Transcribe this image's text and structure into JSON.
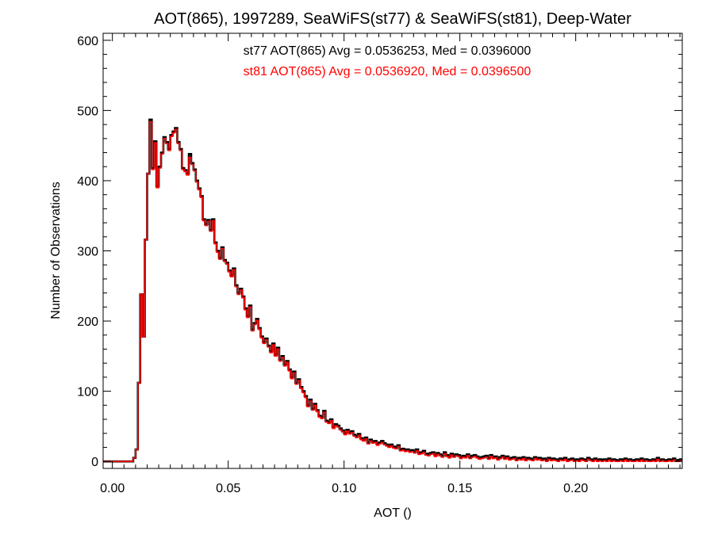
{
  "chart_data": {
    "type": "histogram",
    "title": "AOT(865), 1997289, SeaWiFS(st77) & SeaWiFS(st81), Deep-Water",
    "xlabel": "AOT ()",
    "ylabel": "Number of Observations",
    "xlim": [
      -0.004,
      0.246
    ],
    "ylim": [
      -10,
      610
    ],
    "x_ticks": [
      0.0,
      0.05,
      0.1,
      0.15,
      0.2
    ],
    "x_tick_labels": [
      "0.00",
      "0.05",
      "0.10",
      "0.15",
      "0.20"
    ],
    "y_ticks": [
      0,
      100,
      200,
      300,
      400,
      500,
      600
    ],
    "y_tick_labels": [
      "0",
      "100",
      "200",
      "300",
      "400",
      "500",
      "600"
    ],
    "bin_start": -0.004,
    "bin_width": 0.001,
    "legend_placement": "top-center",
    "series": [
      {
        "name": "st77",
        "color": "#000000",
        "stats_label": "st77 AOT(865) Avg = 0.0536253, Med = 0.0396000",
        "values": [
          0,
          0,
          0,
          0,
          0,
          0,
          0,
          0,
          0,
          0,
          0,
          0,
          0,
          5,
          17,
          112,
          238,
          178,
          316,
          410,
          487,
          418,
          456,
          392,
          420,
          440,
          462,
          455,
          445,
          465,
          470,
          475,
          455,
          445,
          418,
          415,
          410,
          438,
          425,
          416,
          400,
          389,
          378,
          345,
          338,
          344,
          330,
          345,
          312,
          300,
          290,
          305,
          287,
          283,
          272,
          265,
          275,
          251,
          240,
          246,
          235,
          218,
          207,
          222,
          188,
          197,
          203,
          190,
          178,
          170,
          175,
          165,
          157,
          168,
          152,
          162,
          145,
          150,
          138,
          143,
          131,
          120,
          128,
          112,
          117,
          106,
          100,
          93,
          80,
          88,
          75,
          82,
          73,
          65,
          63,
          72,
          58,
          56,
          60,
          49,
          53,
          51,
          47,
          44,
          40,
          45,
          41,
          43,
          38,
          36,
          39,
          33,
          31,
          34,
          27,
          31,
          28,
          29,
          25,
          27,
          29,
          26,
          24,
          22,
          24,
          21,
          20,
          23,
          17,
          18,
          16,
          17,
          15,
          16,
          14,
          17,
          12,
          13,
          15,
          11,
          10,
          12,
          13,
          9,
          12,
          10,
          8,
          13,
          9,
          7,
          11,
          8,
          10,
          9,
          6,
          8,
          7,
          10,
          6,
          8,
          9,
          7,
          5,
          6,
          7,
          8,
          5,
          9,
          6,
          7,
          4,
          6,
          8,
          5,
          7,
          4,
          5,
          6,
          3,
          5,
          4,
          6,
          3,
          5,
          4,
          3,
          6,
          4,
          5,
          3,
          4,
          2,
          5,
          3,
          4,
          3,
          2,
          4,
          3,
          5,
          2,
          3,
          4,
          2,
          3,
          2,
          4,
          3,
          2,
          5,
          3,
          2,
          4,
          2,
          3,
          2,
          3,
          2,
          4,
          2,
          3,
          2,
          1,
          3,
          2,
          4,
          2,
          3,
          1,
          2,
          3,
          2,
          4,
          1,
          3,
          2,
          1,
          3,
          2,
          5,
          2,
          3,
          1,
          2,
          3,
          2,
          4,
          1,
          2,
          3,
          2,
          1,
          3,
          2,
          1,
          2,
          3
        ]
      },
      {
        "name": "st81",
        "color": "#ff0000",
        "stats_label": "st81 AOT(865) Avg = 0.0536920, Med = 0.0396500",
        "values": [
          0,
          0,
          0,
          0,
          0,
          0,
          0,
          0,
          0,
          0,
          0,
          0,
          0,
          5,
          17,
          112,
          238,
          178,
          316,
          410,
          484,
          416,
          454,
          390,
          418,
          438,
          460,
          453,
          443,
          463,
          468,
          473,
          453,
          443,
          416,
          413,
          408,
          433,
          423,
          414,
          398,
          387,
          376,
          343,
          336,
          342,
          328,
          343,
          310,
          298,
          288,
          303,
          285,
          281,
          270,
          263,
          273,
          249,
          238,
          244,
          233,
          216,
          205,
          220,
          186,
          195,
          201,
          188,
          176,
          168,
          173,
          163,
          155,
          166,
          150,
          160,
          143,
          148,
          136,
          141,
          129,
          118,
          126,
          110,
          115,
          104,
          98,
          91,
          78,
          86,
          73,
          80,
          71,
          63,
          61,
          70,
          56,
          54,
          58,
          47,
          51,
          49,
          45,
          42,
          38,
          43,
          39,
          41,
          36,
          34,
          37,
          31,
          29,
          32,
          25,
          29,
          26,
          27,
          23,
          25,
          27,
          24,
          22,
          20,
          22,
          19,
          18,
          21,
          15,
          16,
          14,
          15,
          13,
          14,
          12,
          15,
          10,
          11,
          13,
          9,
          8,
          10,
          11,
          7,
          10,
          8,
          6,
          11,
          7,
          5,
          9,
          6,
          8,
          7,
          4,
          6,
          5,
          8,
          4,
          6,
          7,
          5,
          3,
          4,
          5,
          6,
          3,
          7,
          4,
          5,
          2,
          4,
          6,
          3,
          5,
          2,
          3,
          4,
          1,
          3,
          2,
          4,
          1,
          3,
          2,
          1,
          4,
          2,
          3,
          1,
          2,
          0,
          3,
          1,
          2,
          1,
          0,
          2,
          1,
          3,
          0,
          1,
          2,
          0,
          1,
          0,
          2,
          1,
          0,
          3,
          1,
          0,
          2,
          0,
          1,
          0,
          1,
          0,
          2,
          0,
          1,
          0,
          0,
          1,
          0,
          2,
          0,
          1,
          0,
          0,
          1,
          0,
          2,
          0,
          1,
          0,
          0,
          1,
          0,
          3,
          0,
          1,
          0,
          0,
          1,
          0,
          2,
          0,
          0,
          1,
          0,
          0,
          1,
          0,
          0,
          0,
          1
        ]
      }
    ]
  }
}
